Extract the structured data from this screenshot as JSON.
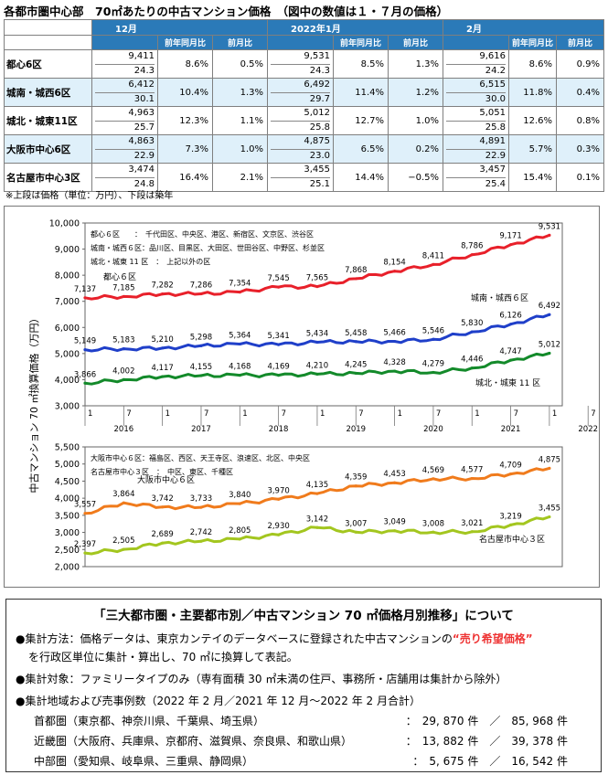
{
  "header": {
    "title": "各都市圏中心部　70㎡あたりの中古マンション価格　（図中の数値は１・７月の価格）"
  },
  "table": {
    "periods": [
      "12月",
      "2022年1月",
      "2月"
    ],
    "subheaders": [
      "前年同月比",
      "前月比"
    ],
    "rows": [
      {
        "name": "都心6区",
        "cells": [
          {
            "price": "9,411",
            "age": "24.3",
            "yoy": "8.6%",
            "mom": "0.5%"
          },
          {
            "price": "9,531",
            "age": "24.3",
            "yoy": "8.5%",
            "mom": "1.3%"
          },
          {
            "price": "9,616",
            "age": "24.2",
            "yoy": "8.6%",
            "mom": "0.9%"
          }
        ]
      },
      {
        "name": "城南・城西6区",
        "cells": [
          {
            "price": "6,412",
            "age": "30.1",
            "yoy": "10.4%",
            "mom": "1.3%"
          },
          {
            "price": "6,492",
            "age": "29.7",
            "yoy": "11.4%",
            "mom": "1.2%"
          },
          {
            "price": "6,515",
            "age": "30.0",
            "yoy": "11.8%",
            "mom": "0.4%"
          }
        ]
      },
      {
        "name": "城北・城東11区",
        "cells": [
          {
            "price": "4,963",
            "age": "25.7",
            "yoy": "12.3%",
            "mom": "1.1%"
          },
          {
            "price": "5,012",
            "age": "25.8",
            "yoy": "12.7%",
            "mom": "1.0%"
          },
          {
            "price": "5,051",
            "age": "25.8",
            "yoy": "12.6%",
            "mom": "0.8%"
          }
        ]
      },
      {
        "name": "大阪市中心6区",
        "cells": [
          {
            "price": "4,863",
            "age": "22.9",
            "yoy": "7.3%",
            "mom": "1.0%"
          },
          {
            "price": "4,875",
            "age": "23.0",
            "yoy": "6.5%",
            "mom": "0.2%"
          },
          {
            "price": "4,891",
            "age": "22.9",
            "yoy": "5.7%",
            "mom": "0.3%"
          }
        ]
      },
      {
        "name": "名古屋市中心3区",
        "cells": [
          {
            "price": "3,474",
            "age": "24.8",
            "yoy": "16.4%",
            "mom": "2.1%"
          },
          {
            "price": "3,455",
            "age": "25.1",
            "yoy": "14.4%",
            "mom": "−0.5%"
          },
          {
            "price": "3,457",
            "age": "25.4",
            "yoy": "15.4%",
            "mom": "0.1%"
          }
        ]
      }
    ],
    "note": "※上段は価格（単位：万円）、下段は築年"
  },
  "chart_data": [
    {
      "type": "line",
      "ylabel": "中古マンション 70 ㎡換算価格（万円）",
      "ylim": [
        3000,
        10000
      ],
      "yticks": [
        "10,000",
        "9,000",
        "8,000",
        "7,000",
        "6,000",
        "5,000",
        "4,000",
        "3,000"
      ],
      "x_tick_labels": [
        "1",
        "7",
        "1",
        "7",
        "1",
        "7",
        "1",
        "7",
        "1",
        "7",
        "1",
        "7",
        "1",
        "7"
      ],
      "year_labels": [
        "2016",
        "2017",
        "2018",
        "2019",
        "2020",
        "2021",
        "2022"
      ],
      "legend_notes": [
        "都心６区　　：　千代田区、中央区、港区、新宿区、文京区、渋谷区",
        "城南・城西６区：品川区、目黒区、大田区、世田谷区、中野区、杉並区",
        "城北・城東 11 区　：　上記以外の区"
      ],
      "series": [
        {
          "name": "都心６区",
          "color": "#e8202a",
          "labels": [
            "7,137",
            "7,185",
            "7,282",
            "7,286",
            "7,354",
            "7,545",
            "7,565",
            "7,868",
            "8,154",
            "8,411",
            "8,786",
            "9,171",
            "9,531"
          ],
          "x": [
            0,
            6,
            12,
            18,
            24,
            30,
            36,
            42,
            48,
            54,
            60,
            66,
            72
          ],
          "values": [
            7137,
            7185,
            7282,
            7286,
            7354,
            7545,
            7565,
            7868,
            8154,
            8411,
            8786,
            9171,
            9531
          ]
        },
        {
          "name": "城南・城西６区",
          "color": "#1f3fc9",
          "labels": [
            "5,149",
            "5,183",
            "5,210",
            "5,298",
            "5,364",
            "5,341",
            "5,434",
            "5,458",
            "5,466",
            "5,546",
            "5,830",
            "6,126",
            "6,492"
          ],
          "x": [
            0,
            6,
            12,
            18,
            24,
            30,
            36,
            42,
            48,
            54,
            60,
            66,
            72
          ],
          "values": [
            5149,
            5183,
            5210,
            5298,
            5364,
            5341,
            5434,
            5458,
            5466,
            5546,
            5830,
            6126,
            6492
          ]
        },
        {
          "name": "城北・城東 11 区",
          "color": "#138a2a",
          "labels": [
            "3,866",
            "4,002",
            "4,117",
            "4,155",
            "4,168",
            "4,169",
            "4,210",
            "4,245",
            "4,328",
            "4,279",
            "4,446",
            "4,747",
            "5,012"
          ],
          "x": [
            0,
            6,
            12,
            18,
            24,
            30,
            36,
            42,
            48,
            54,
            60,
            66,
            72
          ],
          "values": [
            3866,
            4002,
            4117,
            4155,
            4168,
            4169,
            4210,
            4245,
            4328,
            4279,
            4446,
            4747,
            5012
          ]
        }
      ]
    },
    {
      "type": "line",
      "ylim": [
        2000,
        5500
      ],
      "yticks": [
        "5,500",
        "5,000",
        "4,500",
        "4,000",
        "3,500",
        "3,000",
        "2,500",
        "2,000"
      ],
      "legend_notes": [
        "大阪市中心６区：福島区、西区、天王寺区、浪速区、北区、中央区",
        "名古屋市中心３区　：　中区、東区、千種区"
      ],
      "series": [
        {
          "name": "大阪市中心６区",
          "color": "#f07b1c",
          "labels": [
            "3,557",
            "3,864",
            "3,742",
            "3,733",
            "3,840",
            "3,970",
            "4,135",
            "4,359",
            "4,453",
            "4,569",
            "4,577",
            "4,709",
            "4,875"
          ],
          "x": [
            0,
            6,
            12,
            18,
            24,
            30,
            36,
            42,
            48,
            54,
            60,
            66,
            72
          ],
          "values": [
            3557,
            3864,
            3742,
            3733,
            3840,
            3970,
            4135,
            4359,
            4453,
            4569,
            4577,
            4709,
            4875
          ]
        },
        {
          "name": "名古屋市中心３区",
          "color": "#a3c61f",
          "labels": [
            "2,397",
            "2,505",
            "2,689",
            "2,742",
            "2,805",
            "2,930",
            "3,142",
            "3,007",
            "3,049",
            "3,008",
            "3,021",
            "3,219",
            "3,455"
          ],
          "x": [
            0,
            6,
            12,
            18,
            24,
            30,
            36,
            42,
            48,
            54,
            60,
            66,
            72
          ],
          "values": [
            2397,
            2505,
            2689,
            2742,
            2805,
            2930,
            3142,
            3007,
            3049,
            3008,
            3021,
            3219,
            3455
          ]
        }
      ]
    }
  ],
  "info": {
    "title": "「三大都市圏・主要都市別／中古マンション 70 ㎡価格月別推移」について",
    "method_prefix": "●集計方法：価格データは、東京カンテイのデータベースに登録された中古マンションの",
    "method_highlight": "“売り希望価格”",
    "method_cont": "を行政区単位に集計・算出し、70 ㎡に換算して表記。",
    "target": "●集計対象：ファミリータイプのみ（専有面積 30 ㎡未満の住戸、事務所・店舗用は集計から除外）",
    "period": "●集計地域および売事例数（2022 年 2 月／2021 年 12 月～2022 年 2 月合計）",
    "regions": [
      {
        "name": "首都圏（東京都、神奈川県、千葉県、埼玉県）",
        "vals": "：　29, 870 件　／　85, 968 件"
      },
      {
        "name": "近畿圏（大阪府、兵庫県、京都府、滋賀県、奈良県、和歌山県）",
        "vals": "：　13, 882 件　／　39, 378 件"
      },
      {
        "name": "中部圏（愛知県、岐阜県、三重県、静岡県）",
        "vals": "：　5, 675 件　／　16, 542 件"
      }
    ]
  }
}
